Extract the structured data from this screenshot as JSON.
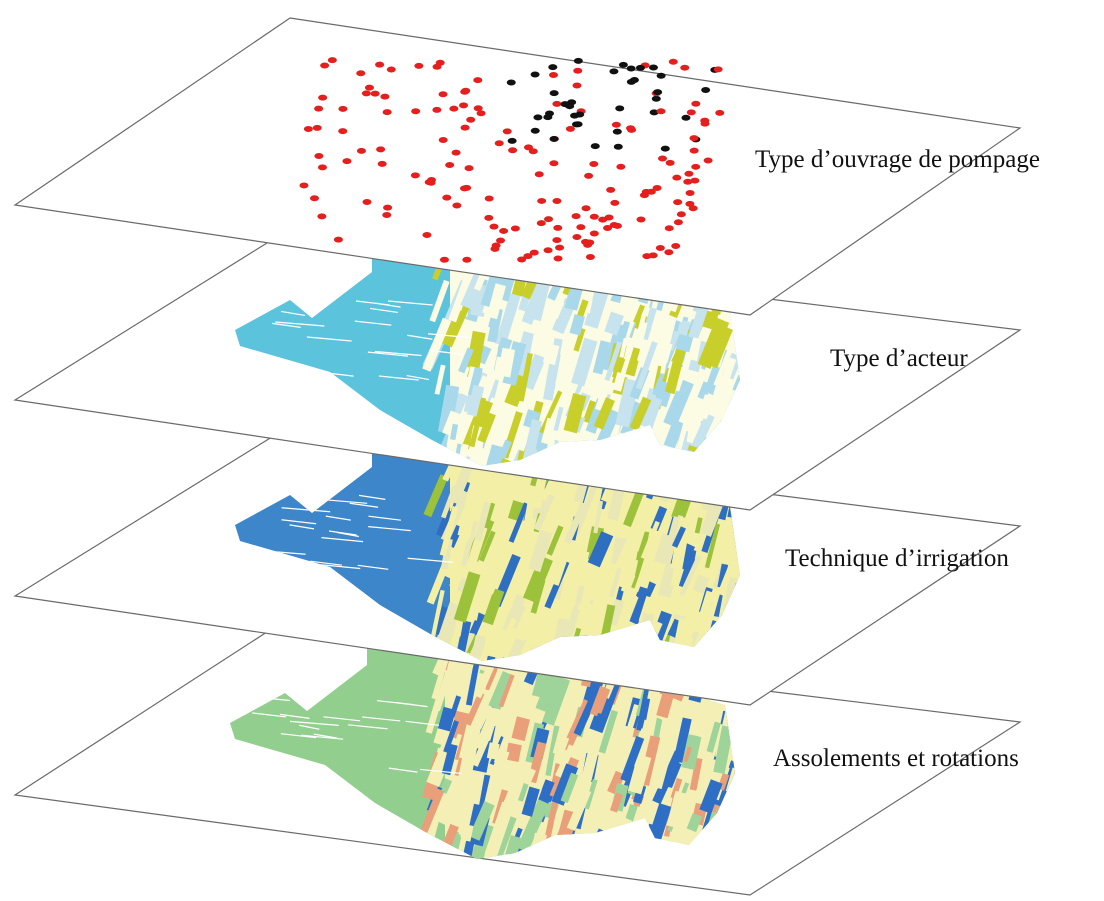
{
  "layers": [
    {
      "label": "Type d’ouvrage de pompage"
    },
    {
      "label": "Type d’acteur"
    },
    {
      "label": "Technique d’irrigation"
    },
    {
      "label": "Assolements et rotations"
    }
  ]
}
